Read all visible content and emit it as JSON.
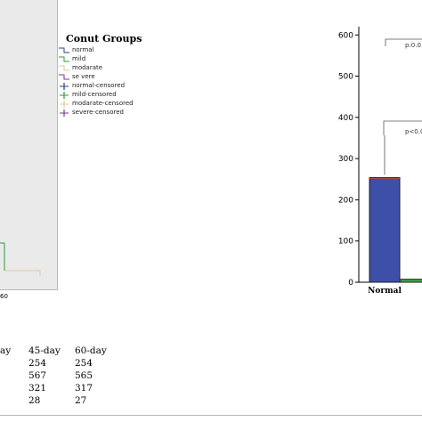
{
  "km_panel": {
    "legend": {
      "title": "Conut Groups",
      "items": [
        {
          "label": "normal",
          "color": "#2c3f8f",
          "kind": "line"
        },
        {
          "label": "mild",
          "color": "#2e9a3a",
          "kind": "line"
        },
        {
          "label": "modarate",
          "color": "#e3c79c",
          "kind": "line"
        },
        {
          "label": "se vere",
          "color": "#7a3a8a",
          "kind": "line"
        },
        {
          "label": "normal-censored",
          "color": "#2c3f8f",
          "kind": "plus"
        },
        {
          "label": "mild-censored",
          "color": "#2e9a3a",
          "kind": "plus"
        },
        {
          "label": "modarate-censored",
          "color": "#e3c79c",
          "kind": "plus"
        },
        {
          "label": "severe-censored",
          "color": "#7a3a8a",
          "kind": "plus"
        }
      ]
    },
    "x_tick": "60"
  },
  "chart_data": {
    "type": "bar",
    "categories": [
      "Normal"
    ],
    "series": [
      {
        "values": [
          254
        ],
        "color": "#3d4fa8"
      },
      {
        "values": [
          8
        ],
        "color": "#3a9a48"
      }
    ],
    "yticks": [
      "0",
      "100",
      "200",
      "300",
      "400",
      "500",
      "600"
    ],
    "ylim": [
      0,
      620
    ],
    "annotations": [
      "p:0.0",
      "p<0.0"
    ]
  },
  "table": {
    "columns": [
      {
        "header": "45-day",
        "values": [
          "254",
          "567",
          "321",
          "28"
        ]
      },
      {
        "header": "60-day",
        "values": [
          "254",
          "565",
          "317",
          "27"
        ]
      }
    ],
    "first_col_header": "ay"
  }
}
